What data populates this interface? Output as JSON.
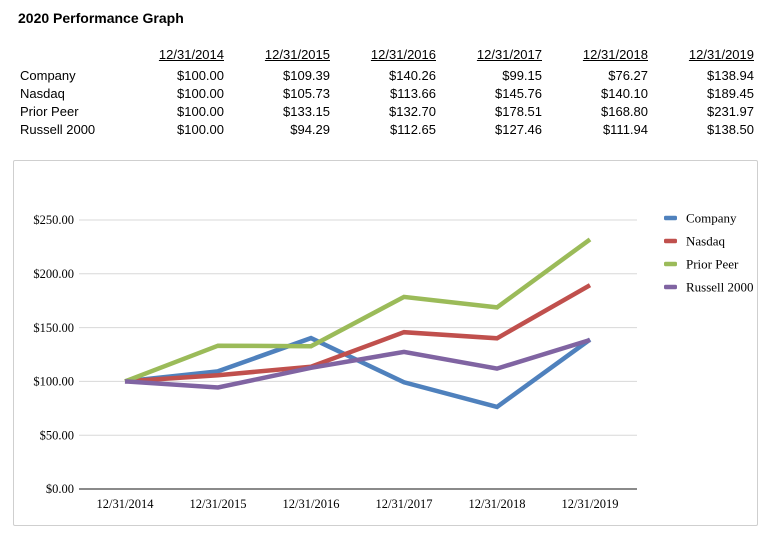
{
  "title": "2020 Performance Graph",
  "table": {
    "columns": [
      "12/31/2014",
      "12/31/2015",
      "12/31/2016",
      "12/31/2017",
      "12/31/2018",
      "12/31/2019"
    ],
    "rows": [
      {
        "label": "Company",
        "values": [
          "$100.00",
          "$109.39",
          "$140.26",
          "$99.15",
          "$76.27",
          "$138.94"
        ]
      },
      {
        "label": "Nasdaq",
        "values": [
          "$100.00",
          "$105.73",
          "$113.66",
          "$145.76",
          "$140.10",
          "$189.45"
        ]
      },
      {
        "label": "Prior Peer",
        "values": [
          "$100.00",
          "$133.15",
          "$132.70",
          "$178.51",
          "$168.80",
          "$231.97"
        ]
      },
      {
        "label": "Russell 2000",
        "values": [
          "$100.00",
          "$94.29",
          "$112.65",
          "$127.46",
          "$111.94",
          "$138.50"
        ]
      }
    ]
  },
  "chart_data": {
    "type": "line",
    "title": "",
    "x": [
      "12/31/2014",
      "12/31/2015",
      "12/31/2016",
      "12/31/2017",
      "12/31/2018",
      "12/31/2019"
    ],
    "series": [
      {
        "name": "Company",
        "color": "#4F81BD",
        "values": [
          100.0,
          109.39,
          140.26,
          99.15,
          76.27,
          138.94
        ]
      },
      {
        "name": "Nasdaq",
        "color": "#C0504D",
        "values": [
          100.0,
          105.73,
          113.66,
          145.76,
          140.1,
          189.45
        ]
      },
      {
        "name": "Prior Peer",
        "color": "#9BBB59",
        "values": [
          100.0,
          133.15,
          132.7,
          178.51,
          168.8,
          231.97
        ]
      },
      {
        "name": "Russell 2000",
        "color": "#8064A2",
        "values": [
          100.0,
          94.29,
          112.65,
          127.46,
          111.94,
          138.5
        ]
      }
    ],
    "ylim": [
      0,
      250
    ],
    "ytick_step": 50,
    "ytick_labels": [
      "$0.00",
      "$50.00",
      "$100.00",
      "$150.00",
      "$200.00",
      "$250.00"
    ],
    "grid": true,
    "legend_position": "right",
    "gridline_color": "#D8D8D8",
    "axis_color": "#8A8A8A"
  }
}
